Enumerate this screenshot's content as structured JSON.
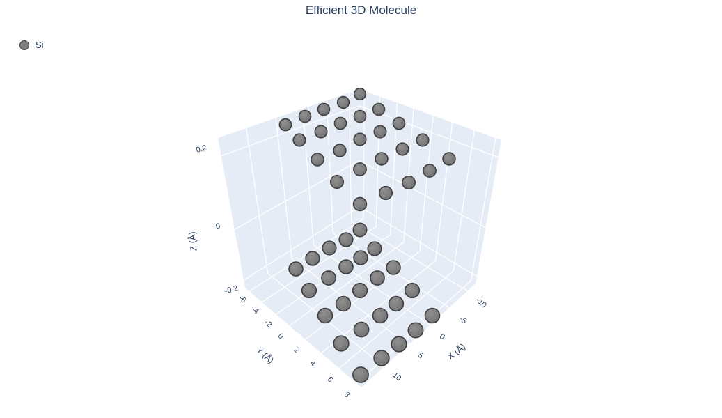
{
  "chart": {
    "title": "Efficient 3D Molecule",
    "legend": {
      "series_label": "Si"
    },
    "colors": {
      "title_text": "#2a3f5f",
      "tick_text": "#2a3f5f",
      "wall_fill": "#e5ecf6",
      "grid_line": "#ffffff",
      "atom_fill": "#7d7d7d",
      "atom_outline": "#3f3f3f"
    }
  },
  "chart_data": {
    "type": "scatter",
    "subtype": "scatter3d-molecule",
    "title": "Efficient 3D Molecule",
    "legend_position": "top-left",
    "axes": {
      "x": {
        "title": "X (Å)",
        "ticks": [
          "10",
          "5",
          "0",
          "-5",
          "-10"
        ],
        "range_hint": [
          -10,
          10
        ]
      },
      "y": {
        "title": "Y (Å)",
        "ticks": [
          "-6",
          "-4",
          "-2",
          "0",
          "2",
          "4",
          "6",
          "8"
        ],
        "range_hint": [
          -6,
          8
        ]
      },
      "z": {
        "title": "Z (Å)",
        "ticks": [
          "0.2",
          "0",
          "-0.2"
        ],
        "range_hint": [
          -0.2,
          0.2
        ]
      }
    },
    "grid": true,
    "series": [
      {
        "name": "Si",
        "atom_count": 50,
        "atom_columns": [
          "x",
          "y",
          "z",
          "px",
          "py"
        ],
        "atoms": [
          [
            -10.2,
            -6.4,
            0.2,
            517,
            135
          ],
          [
            -7.8,
            -6.4,
            0.2,
            493,
            147
          ],
          [
            -10.2,
            -4.85,
            0.2,
            544,
            157
          ],
          [
            -5.4,
            -6.4,
            0.2,
            465,
            157
          ],
          [
            -7.8,
            -4.85,
            0.2,
            517,
            167
          ],
          [
            -10.2,
            -3.3,
            0.2,
            573,
            177
          ],
          [
            -3.0,
            -6.4,
            0.2,
            438,
            167
          ],
          [
            -5.4,
            -4.85,
            0.2,
            489,
            177
          ],
          [
            -7.8,
            -3.3,
            0.2,
            546,
            189
          ],
          [
            -10.2,
            -1.75,
            0.2,
            607,
            201
          ],
          [
            -0.6,
            -6.4,
            0.2,
            410,
            179
          ],
          [
            -3.0,
            -4.85,
            0.2,
            461,
            189
          ],
          [
            -5.4,
            -3.3,
            0.2,
            517,
            200
          ],
          [
            -7.8,
            -1.75,
            0.2,
            578,
            214
          ],
          [
            -10.2,
            -0.2,
            0.2,
            645,
            228
          ],
          [
            -0.6,
            -4.85,
            0.2,
            430,
            201
          ],
          [
            -3.0,
            -3.3,
            0.2,
            488,
            216
          ],
          [
            -5.4,
            -1.75,
            0.2,
            548,
            228
          ],
          [
            -7.8,
            -0.2,
            0.2,
            617,
            245
          ],
          [
            -0.6,
            -3.3,
            0.2,
            456,
            229
          ],
          [
            -3.0,
            -1.75,
            0.2,
            517,
            243
          ],
          [
            -5.4,
            -0.2,
            0.2,
            587,
            262
          ],
          [
            -0.6,
            -1.75,
            0.2,
            484,
            261
          ],
          [
            -3.0,
            -0.2,
            0.2,
            554,
            277
          ],
          [
            -0.6,
            -0.2,
            0.2,
            517,
            293
          ],
          [
            0.6,
            0.2,
            -0.2,
            517,
            330
          ],
          [
            3.0,
            0.2,
            -0.2,
            497,
            344
          ],
          [
            0.6,
            1.75,
            -0.2,
            538,
            357
          ],
          [
            5.4,
            0.2,
            -0.2,
            473,
            356
          ],
          [
            3.0,
            1.75,
            -0.2,
            518,
            370
          ],
          [
            0.6,
            3.3,
            -0.2,
            565,
            384
          ],
          [
            7.8,
            0.2,
            -0.2,
            449,
            371
          ],
          [
            5.4,
            1.75,
            -0.2,
            497,
            383
          ],
          [
            3.0,
            3.3,
            -0.2,
            542,
            399
          ],
          [
            0.6,
            4.85,
            -0.2,
            592,
            417
          ],
          [
            10.2,
            0.2,
            -0.2,
            425,
            386
          ],
          [
            7.8,
            1.75,
            -0.2,
            472,
            399
          ],
          [
            5.4,
            3.3,
            -0.2,
            517,
            417
          ],
          [
            3.0,
            4.85,
            -0.2,
            569,
            436
          ],
          [
            0.6,
            6.4,
            -0.2,
            621,
            453
          ],
          [
            10.2,
            1.75,
            -0.2,
            444,
            417
          ],
          [
            7.8,
            3.3,
            -0.2,
            493,
            436
          ],
          [
            5.4,
            4.85,
            -0.2,
            546,
            453
          ],
          [
            3.0,
            6.4,
            -0.2,
            597,
            474
          ],
          [
            10.2,
            3.3,
            -0.2,
            467,
            453
          ],
          [
            7.8,
            4.85,
            -0.2,
            519,
            473
          ],
          [
            5.4,
            6.4,
            -0.2,
            573,
            494
          ],
          [
            10.2,
            4.85,
            -0.2,
            490,
            493
          ],
          [
            7.8,
            6.4,
            -0.2,
            548,
            514
          ],
          [
            10.2,
            6.4,
            -0.2,
            518,
            538
          ]
        ]
      }
    ]
  }
}
